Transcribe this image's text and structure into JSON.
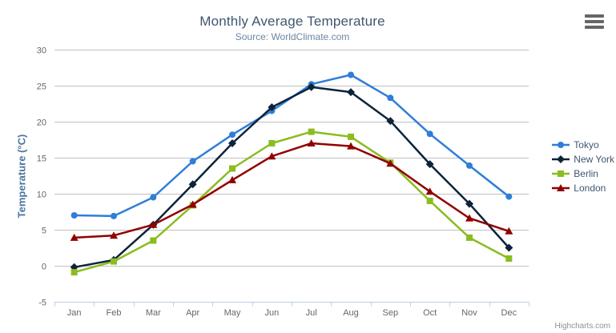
{
  "header": {
    "title": "Monthly Average Temperature",
    "subtitle": "Source: WorldClimate.com"
  },
  "chart_data": {
    "type": "line",
    "title": "Monthly Average Temperature",
    "subtitle": "Source: WorldClimate.com",
    "categories": [
      "Jan",
      "Feb",
      "Mar",
      "Apr",
      "May",
      "Jun",
      "Jul",
      "Aug",
      "Sep",
      "Oct",
      "Nov",
      "Dec"
    ],
    "series": [
      {
        "name": "Tokyo",
        "color": "#2f7ed8",
        "marker": "circle",
        "values": [
          7.0,
          6.9,
          9.5,
          14.5,
          18.2,
          21.5,
          25.2,
          26.5,
          23.3,
          18.3,
          13.9,
          9.6
        ]
      },
      {
        "name": "New York",
        "color": "#0d233a",
        "marker": "diamond",
        "values": [
          -0.2,
          0.8,
          5.7,
          11.3,
          17.0,
          22.0,
          24.8,
          24.1,
          20.1,
          14.1,
          8.6,
          2.5
        ]
      },
      {
        "name": "Berlin",
        "color": "#8bbc21",
        "marker": "square",
        "values": [
          -0.9,
          0.6,
          3.5,
          8.4,
          13.5,
          17.0,
          18.6,
          17.9,
          14.3,
          9.0,
          3.9,
          1.0
        ]
      },
      {
        "name": "London",
        "color": "#910000",
        "marker": "triangle",
        "values": [
          3.9,
          4.2,
          5.7,
          8.5,
          11.9,
          15.2,
          17.0,
          16.6,
          14.2,
          10.3,
          6.6,
          4.8
        ]
      }
    ],
    "xlabel": "",
    "ylabel": "Temperature (°C)",
    "ylim": [
      -5,
      30
    ],
    "yticks": [
      -5,
      0,
      5,
      10,
      15,
      20,
      25,
      30
    ],
    "grid": true,
    "legend_position": "right"
  },
  "credits": {
    "label": "Highcharts.com"
  },
  "colors": {
    "title": "#3e576f",
    "subtitle": "#6d869f",
    "axis_label": "#666666",
    "axis_title": "#4d759e",
    "grid_line": "#c0c0c0",
    "axis_line": "#c0d0e0",
    "legend_text": "#3e576f",
    "credits_text": "#909090",
    "menu_icon": "#666666"
  }
}
